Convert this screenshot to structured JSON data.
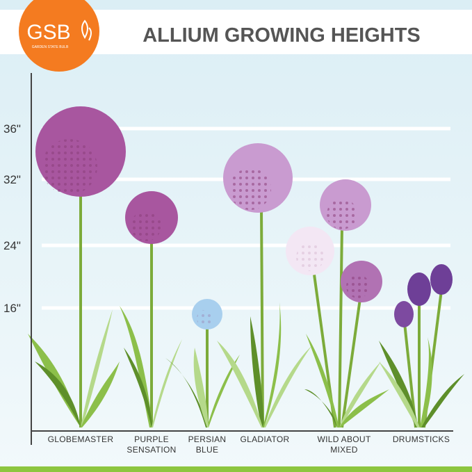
{
  "logo": {
    "initials": "GSB",
    "name": "GARDEN STATE BULB"
  },
  "header": {
    "title": "ALLIUM GROWING HEIGHTS"
  },
  "axis": {
    "ticks": [
      "36\"",
      "32\"",
      "24\"",
      "16\""
    ]
  },
  "plants": [
    [
      "GLOBEMASTER"
    ],
    [
      "PURPLE",
      "SENSATION"
    ],
    [
      "PERSIAN",
      "BLUE"
    ],
    [
      "GLADIATOR"
    ],
    [
      "WILD ABOUT",
      "MIXED"
    ],
    [
      "DRUMSTICKS"
    ]
  ]
}
